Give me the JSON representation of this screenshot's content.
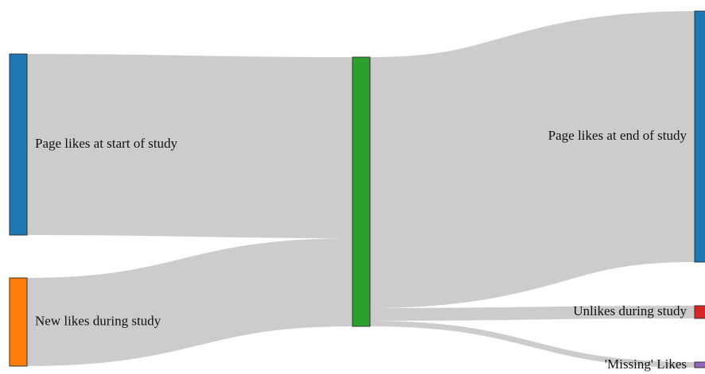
{
  "chart_data": {
    "type": "sankey",
    "nodes": [
      {
        "id": "start",
        "label": "Page likes at start of study",
        "color": "#1f77b4"
      },
      {
        "id": "new",
        "label": "New likes during study",
        "color": "#ff7f0e"
      },
      {
        "id": "mid",
        "label": "",
        "color": "#2ca02c"
      },
      {
        "id": "end",
        "label": "Page likes at end of study",
        "color": "#1f77b4"
      },
      {
        "id": "unlikes",
        "label": "Unlikes during study",
        "color": "#d62728"
      },
      {
        "id": "missing",
        "label": "'Missing' Likes",
        "color": "#9467bd"
      }
    ],
    "links": [
      {
        "source": "start",
        "target": "mid",
        "value": 228
      },
      {
        "source": "new",
        "target": "mid",
        "value": 111
      },
      {
        "source": "mid",
        "target": "end",
        "value": 316
      },
      {
        "source": "mid",
        "target": "unlikes",
        "value": 16
      },
      {
        "source": "mid",
        "target": "missing",
        "value": 7
      }
    ],
    "link_color": "#cccccc"
  }
}
